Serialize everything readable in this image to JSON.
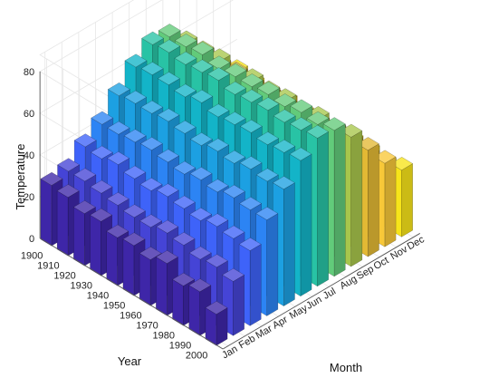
{
  "chart_data": {
    "type": "bar3d",
    "title": "",
    "xlabel": "Month",
    "ylabel": "Year",
    "zlabel": "Temperature",
    "months": [
      "Jan",
      "Feb",
      "Mar",
      "Apr",
      "May",
      "Jun",
      "Jul",
      "Aug",
      "Sep",
      "Oct",
      "Nov",
      "Dec"
    ],
    "years": [
      "1900",
      "1910",
      "1920",
      "1930",
      "1940",
      "1950",
      "1960",
      "1970",
      "1980",
      "1990",
      "2000"
    ],
    "zticks": [
      0,
      20,
      40,
      60,
      80
    ],
    "zlim": [
      0,
      80
    ],
    "grid": true,
    "colormap": "parula (by month)",
    "month_colors": [
      "#3e26a8",
      "#4544d6",
      "#3e63f9",
      "#2c84f4",
      "#1ca0e2",
      "#13b4c8",
      "#28c3a5",
      "#62cb7a",
      "#a8c64c",
      "#e3b934",
      "#f8c838",
      "#f7e41a"
    ],
    "values": [
      [
        29,
        31,
        38,
        44,
        53,
        62,
        68,
        67,
        59,
        49,
        38,
        31
      ],
      [
        28,
        31,
        37,
        44,
        54,
        63,
        69,
        67,
        59,
        48,
        39,
        30
      ],
      [
        25,
        30,
        39,
        45,
        54,
        63,
        68,
        68,
        60,
        49,
        38,
        29
      ],
      [
        26,
        29,
        37,
        46,
        55,
        62,
        69,
        66,
        58,
        48,
        37,
        31
      ],
      [
        23,
        28,
        36,
        45,
        54,
        64,
        70,
        67,
        60,
        49,
        38,
        30
      ],
      [
        24,
        28,
        38,
        44,
        53,
        62,
        68,
        67,
        59,
        50,
        39,
        29
      ],
      [
        22,
        30,
        37,
        46,
        55,
        63,
        69,
        68,
        60,
        48,
        37,
        30
      ],
      [
        25,
        29,
        36,
        45,
        54,
        64,
        70,
        67,
        58,
        49,
        38,
        31
      ],
      [
        19,
        27,
        38,
        47,
        56,
        63,
        69,
        69,
        61,
        50,
        40,
        31
      ],
      [
        21,
        28,
        37,
        46,
        55,
        64,
        70,
        68,
        60,
        49,
        38,
        30
      ],
      [
        15,
        26,
        36,
        46,
        56,
        65,
        71,
        70,
        62,
        51,
        40,
        32
      ]
    ]
  }
}
